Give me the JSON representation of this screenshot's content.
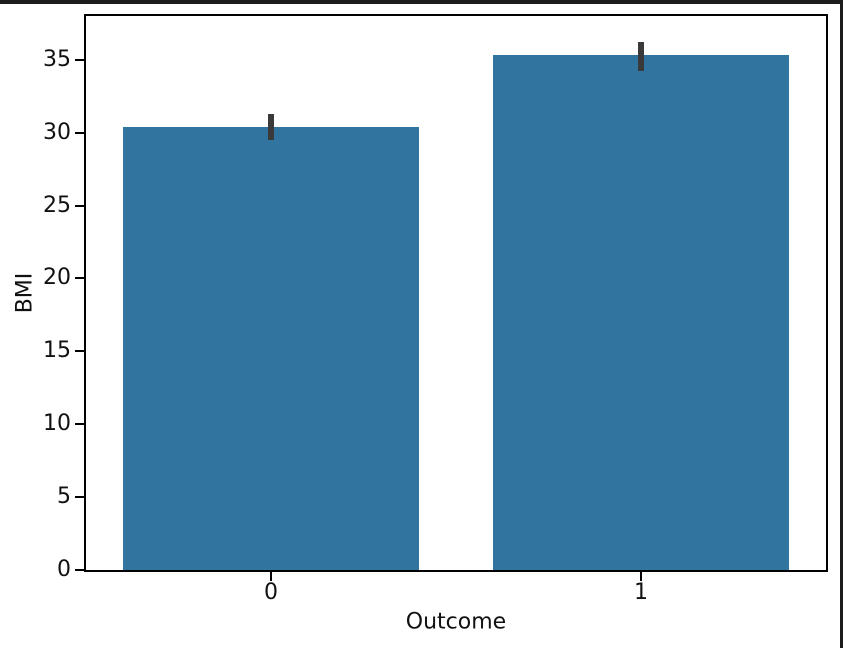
{
  "window": {
    "background": "#FFFFFF",
    "border_color": "#1C1C1C"
  },
  "chart_data": {
    "type": "bar",
    "title": "",
    "xlabel": "Outcome",
    "ylabel": "BMI",
    "categories": [
      "0",
      "1"
    ],
    "values": [
      30.4,
      35.3
    ],
    "error_bars_ci": [
      {
        "low": 29.5,
        "high": 31.3
      },
      {
        "low": 34.2,
        "high": 36.2
      }
    ],
    "yticks": [
      0,
      5,
      10,
      15,
      20,
      25,
      30,
      35
    ],
    "ylim": [
      0,
      38
    ],
    "bar_color": "#31749F",
    "error_bar_color": "#3A3A3A",
    "grid": "off",
    "legend": "none"
  }
}
